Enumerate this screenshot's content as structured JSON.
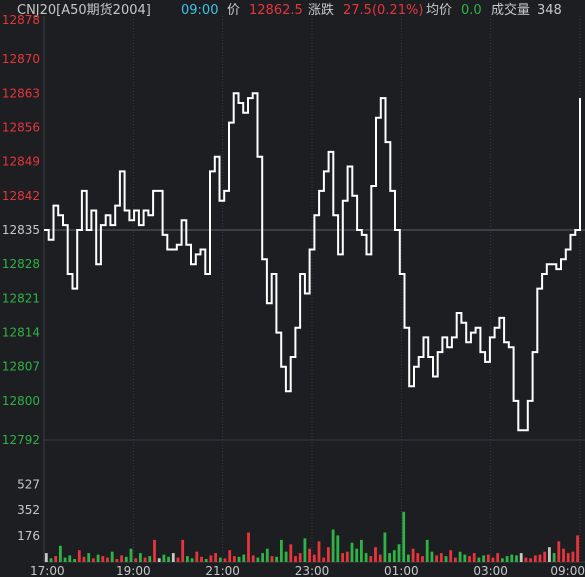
{
  "header": {
    "instrument": "CNJ20[A50期货2004]",
    "time": "09:00",
    "price_label": "价",
    "price": "12862.5",
    "change_label": "涨跌",
    "change": "27.5(0.21%)",
    "avg_label": "均价",
    "avg": "0.0",
    "volume_label": "成交量",
    "volume": "348"
  },
  "colors": {
    "background": "#1c1e22",
    "up": "#e8353b",
    "down": "#2fb344",
    "neutral": "#c8c8c8",
    "time": "#3ec4e6",
    "line": "#ffffff",
    "grid": "#3a3d44"
  },
  "chart_data": [
    {
      "type": "line",
      "yticks": [
        "12878",
        "12870",
        "12863",
        "12856",
        "12849",
        "12842",
        "12835",
        "12828",
        "12821",
        "12814",
        "12807",
        "12800",
        "12792"
      ],
      "ylim": [
        12792,
        12878
      ],
      "baseline": 12835,
      "xticks": [
        "17:00",
        "19:00",
        "21:00",
        "23:00",
        "01:00",
        "03:00",
        "09:00"
      ],
      "series": [
        {
          "values": [
            12835,
            12833,
            12840,
            12838,
            12836,
            12826,
            12823,
            12835,
            12843,
            12835,
            12839,
            12828,
            12836,
            12838,
            12836,
            12840,
            12847,
            12839,
            12837,
            12839,
            12836,
            12839,
            12838,
            12843,
            12843,
            12834,
            12831,
            12831,
            12832,
            12837,
            12832,
            12828,
            12830,
            12831,
            12826,
            12847,
            12850,
            12841,
            12843,
            12857,
            12863,
            12861,
            12859,
            12862,
            12863,
            12850,
            12829,
            12820,
            12826,
            12814,
            12807,
            12802,
            12809,
            12815,
            12826,
            12822,
            12831,
            12838,
            12843,
            12847,
            12851,
            12838,
            12830,
            12841,
            12848,
            12842,
            12835,
            12834,
            12830,
            12844,
            12858,
            12862,
            12853,
            12843,
            12835,
            12826,
            12815,
            12803,
            12807,
            12809,
            12813,
            12809,
            12805,
            12810,
            12813,
            12811,
            12813,
            12818,
            12816,
            12812,
            12814,
            12815,
            12810,
            12808,
            12813,
            12815,
            12817,
            12812,
            12811,
            12800,
            12794,
            12794,
            12800,
            12810,
            12823,
            12826,
            12828,
            12828,
            12827,
            12829,
            12831,
            12834,
            12835,
            12862
          ]
        }
      ]
    },
    {
      "type": "bar",
      "yticks": [
        "527",
        "352",
        "176"
      ],
      "ylim": [
        0,
        705
      ],
      "series": [
        {
          "name": "volume",
          "values": [
            60,
            25,
            40,
            110,
            30,
            45,
            20,
            80,
            35,
            60,
            25,
            50,
            40,
            30,
            70,
            20,
            45,
            35,
            90,
            25,
            60,
            30,
            40,
            150,
            25,
            50,
            35,
            60,
            30,
            150,
            40,
            25,
            70,
            35,
            20,
            45,
            60,
            30,
            25,
            80,
            40,
            35,
            50,
            200,
            45,
            30,
            60,
            90,
            40,
            35,
            150,
            70,
            120,
            40,
            60,
            160,
            90,
            50,
            140,
            30,
            100,
            220,
            180,
            60,
            70,
            130,
            90,
            150,
            60,
            40,
            100,
            50,
            200,
            60,
            80,
            120,
            340,
            50,
            90,
            60,
            40,
            150,
            70,
            45,
            60,
            40,
            80,
            30,
            70,
            50,
            40,
            60,
            30,
            45,
            50,
            30,
            60,
            25,
            40,
            50,
            45,
            60,
            30,
            25,
            45,
            50,
            70,
            100,
            60,
            140,
            90,
            60,
            70,
            180
          ]
        }
      ]
    }
  ]
}
